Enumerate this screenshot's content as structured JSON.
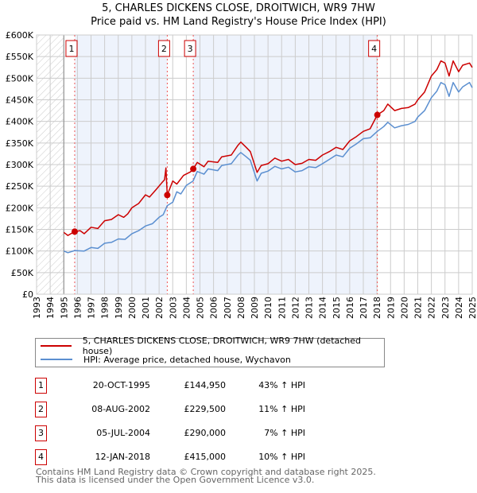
{
  "title": "5, CHARLES DICKENS CLOSE, DROITWICH, WR9 7HW",
  "subtitle": "Price paid vs. HM Land Registry's House Price Index (HPI)",
  "colors": {
    "property": "#cc0000",
    "hpi": "#5b8fd0",
    "shade": "#eef3fc"
  },
  "chart_data": {
    "type": "line",
    "xlim": [
      1993,
      2025
    ],
    "ylim": [
      0,
      600000
    ],
    "xticks": [
      "1993",
      "1994",
      "1995",
      "1996",
      "1997",
      "1998",
      "1999",
      "2000",
      "2001",
      "2002",
      "2003",
      "2004",
      "2005",
      "2006",
      "2007",
      "2008",
      "2009",
      "2010",
      "2011",
      "2012",
      "2013",
      "2014",
      "2015",
      "2016",
      "2017",
      "2018",
      "2019",
      "2020",
      "2021",
      "2022",
      "2023",
      "2024",
      "2025"
    ],
    "yticks": [
      {
        "v": 0,
        "label": "£0"
      },
      {
        "v": 50000,
        "label": "£50K"
      },
      {
        "v": 100000,
        "label": "£100K"
      },
      {
        "v": 150000,
        "label": "£150K"
      },
      {
        "v": 200000,
        "label": "£200K"
      },
      {
        "v": 250000,
        "label": "£250K"
      },
      {
        "v": 300000,
        "label": "£300K"
      },
      {
        "v": 350000,
        "label": "£350K"
      },
      {
        "v": 400000,
        "label": "£400K"
      },
      {
        "v": 450000,
        "label": "£450K"
      },
      {
        "v": 500000,
        "label": "£500K"
      },
      {
        "v": 550000,
        "label": "£550K"
      },
      {
        "v": 600000,
        "label": "£600K"
      }
    ],
    "grid": true,
    "series": [
      {
        "name": "5, CHARLES DICKENS CLOSE, DROITWICH, WR9 7HW (detached house)",
        "points": [
          [
            1995.0,
            143
          ],
          [
            1995.3,
            136
          ],
          [
            1995.8,
            145
          ],
          [
            1996.2,
            147
          ],
          [
            1996.5,
            140
          ],
          [
            1997,
            155
          ],
          [
            1997.5,
            152
          ],
          [
            1998,
            170
          ],
          [
            1998.5,
            173
          ],
          [
            1999,
            184
          ],
          [
            1999.4,
            178
          ],
          [
            1999.7,
            186
          ],
          [
            2000,
            200
          ],
          [
            2000.5,
            210
          ],
          [
            2001,
            230
          ],
          [
            2001.3,
            225
          ],
          [
            2001.8,
            243
          ],
          [
            2002.2,
            258
          ],
          [
            2002.4,
            265
          ],
          [
            2002.5,
            292
          ],
          [
            2002.6,
            229.5
          ],
          [
            2003,
            262
          ],
          [
            2003.3,
            255
          ],
          [
            2003.8,
            275
          ],
          [
            2004.3,
            283
          ],
          [
            2004.51,
            290
          ],
          [
            2004.8,
            305
          ],
          [
            2005.3,
            295
          ],
          [
            2005.6,
            308
          ],
          [
            2006.3,
            305
          ],
          [
            2006.6,
            318
          ],
          [
            2007.3,
            322
          ],
          [
            2007.8,
            345
          ],
          [
            2008.0,
            352
          ],
          [
            2008.4,
            340
          ],
          [
            2008.7,
            330
          ],
          [
            2009.2,
            282
          ],
          [
            2009.5,
            298
          ],
          [
            2010,
            302
          ],
          [
            2010.5,
            315
          ],
          [
            2011,
            308
          ],
          [
            2011.5,
            312
          ],
          [
            2012,
            300
          ],
          [
            2012.5,
            303
          ],
          [
            2013,
            312
          ],
          [
            2013.5,
            310
          ],
          [
            2014,
            322
          ],
          [
            2014.5,
            330
          ],
          [
            2015,
            340
          ],
          [
            2015.5,
            335
          ],
          [
            2016,
            355
          ],
          [
            2016.5,
            365
          ],
          [
            2017,
            377
          ],
          [
            2017.5,
            383
          ],
          [
            2018.03,
            415
          ],
          [
            2018.5,
            425
          ],
          [
            2018.8,
            440
          ],
          [
            2019.3,
            425
          ],
          [
            2019.8,
            430
          ],
          [
            2020.3,
            432
          ],
          [
            2020.8,
            440
          ],
          [
            2021,
            450
          ],
          [
            2021.5,
            468
          ],
          [
            2022,
            505
          ],
          [
            2022.4,
            520
          ],
          [
            2022.7,
            540
          ],
          [
            2023,
            535
          ],
          [
            2023.3,
            505
          ],
          [
            2023.6,
            540
          ],
          [
            2024,
            515
          ],
          [
            2024.3,
            530
          ],
          [
            2024.8,
            535
          ],
          [
            2025,
            525
          ]
        ]
      },
      {
        "name": "HPI: Average price, detached house, Wychavon",
        "points": [
          [
            1995.0,
            100
          ],
          [
            1995.3,
            96
          ],
          [
            1995.8,
            101
          ],
          [
            1996.5,
            100
          ],
          [
            1997,
            108
          ],
          [
            1997.5,
            106
          ],
          [
            1998,
            118
          ],
          [
            1998.5,
            120
          ],
          [
            1999,
            128
          ],
          [
            1999.5,
            127
          ],
          [
            2000,
            140
          ],
          [
            2000.5,
            147
          ],
          [
            2001,
            158
          ],
          [
            2001.5,
            163
          ],
          [
            2002,
            178
          ],
          [
            2002.3,
            184
          ],
          [
            2002.6,
            205
          ],
          [
            2003,
            213
          ],
          [
            2003.3,
            237
          ],
          [
            2003.6,
            232
          ],
          [
            2004,
            252
          ],
          [
            2004.5,
            262
          ],
          [
            2004.8,
            284
          ],
          [
            2005.3,
            278
          ],
          [
            2005.6,
            290
          ],
          [
            2006.3,
            286
          ],
          [
            2006.6,
            298
          ],
          [
            2007.3,
            302
          ],
          [
            2007.8,
            322
          ],
          [
            2008.0,
            328
          ],
          [
            2008.4,
            318
          ],
          [
            2008.7,
            310
          ],
          [
            2009.2,
            262
          ],
          [
            2009.5,
            280
          ],
          [
            2010,
            285
          ],
          [
            2010.5,
            296
          ],
          [
            2011,
            290
          ],
          [
            2011.5,
            294
          ],
          [
            2012,
            283
          ],
          [
            2012.5,
            286
          ],
          [
            2013,
            295
          ],
          [
            2013.5,
            293
          ],
          [
            2014,
            302
          ],
          [
            2014.5,
            312
          ],
          [
            2015,
            322
          ],
          [
            2015.5,
            318
          ],
          [
            2016,
            338
          ],
          [
            2016.5,
            348
          ],
          [
            2017,
            360
          ],
          [
            2017.5,
            362
          ],
          [
            2018.03,
            377
          ],
          [
            2018.5,
            388
          ],
          [
            2018.8,
            398
          ],
          [
            2019.3,
            385
          ],
          [
            2019.8,
            390
          ],
          [
            2020.3,
            393
          ],
          [
            2020.8,
            400
          ],
          [
            2021,
            410
          ],
          [
            2021.5,
            425
          ],
          [
            2022,
            455
          ],
          [
            2022.4,
            470
          ],
          [
            2022.7,
            490
          ],
          [
            2023,
            485
          ],
          [
            2023.3,
            458
          ],
          [
            2023.6,
            490
          ],
          [
            2024,
            468
          ],
          [
            2024.3,
            480
          ],
          [
            2024.8,
            490
          ],
          [
            2025,
            478
          ]
        ]
      }
    ],
    "sales": [
      {
        "n": "1",
        "x": 1995.8,
        "y": 144.95
      },
      {
        "n": "2",
        "x": 2002.6,
        "y": 229.5
      },
      {
        "n": "3",
        "x": 2004.51,
        "y": 290
      },
      {
        "n": "4",
        "x": 2018.03,
        "y": 415
      }
    ],
    "legend_position": "below"
  },
  "table": [
    {
      "n": "1",
      "date": "20-OCT-1995",
      "price": "£144,950",
      "hpi": "43% ↑ HPI"
    },
    {
      "n": "2",
      "date": "08-AUG-2002",
      "price": "£229,500",
      "hpi": "11% ↑ HPI"
    },
    {
      "n": "3",
      "date": "05-JUL-2004",
      "price": "£290,000",
      "hpi": "7% ↑ HPI"
    },
    {
      "n": "4",
      "date": "12-JAN-2018",
      "price": "£415,000",
      "hpi": "10% ↑ HPI"
    }
  ],
  "footer": [
    "Contains HM Land Registry data © Crown copyright and database right 2025.",
    "This data is licensed under the Open Government Licence v3.0."
  ]
}
